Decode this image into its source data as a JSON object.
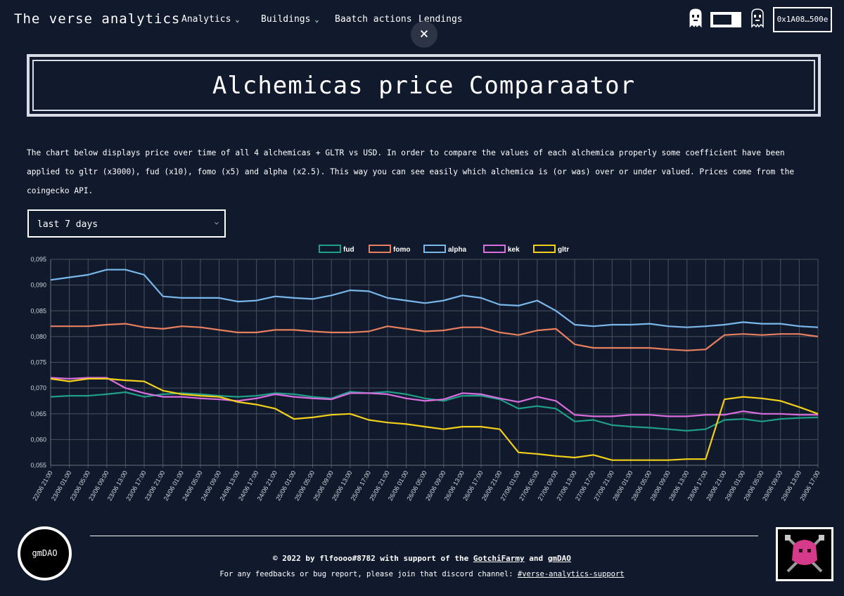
{
  "header": {
    "brand": "The verse analytics",
    "nav": [
      {
        "label": "Analytics",
        "dropdown": true
      },
      {
        "label": "Buildings",
        "dropdown": true
      },
      {
        "label": "Baatch actions",
        "dropdown": false
      },
      {
        "label": "Lendings",
        "dropdown": false
      }
    ],
    "close_label": "×",
    "wallet": "0x1A08…500e"
  },
  "page": {
    "title": "Alchemicas price Comparaator",
    "description": "The chart below displays price over time of all 4 alchemicas + GLTR vs USD. In order to compare the values of each alchemica properly some coefficient have been applied to gltr (x3000), fud (x10), fomo (x5) and alpha (x2.5). This way you can see easily which alchemica is (or was) over or under valued. Prices come from the coingecko API.",
    "range_select": "last 7 days"
  },
  "chart_data": {
    "type": "line",
    "title": "",
    "xlabel": "",
    "ylabel": "",
    "ylim": [
      0.055,
      0.095
    ],
    "yticks": [
      "0,055",
      "0,060",
      "0,065",
      "0,070",
      "0,075",
      "0,080",
      "0,085",
      "0,090",
      "0,095"
    ],
    "grid": true,
    "legend_position": "top",
    "x": [
      "22/06 21:00",
      "23/06 01:00",
      "23/06 05:00",
      "23/06 09:00",
      "23/06 13:00",
      "23/06 17:00",
      "23/06 21:00",
      "24/06 01:00",
      "24/06 05:00",
      "24/06 09:00",
      "24/06 13:00",
      "24/06 17:00",
      "24/06 21:00",
      "25/06 01:00",
      "25/06 05:00",
      "25/06 09:00",
      "25/06 13:00",
      "25/06 17:00",
      "25/06 21:00",
      "26/06 01:00",
      "26/06 05:00",
      "26/06 09:00",
      "26/06 13:00",
      "26/06 17:00",
      "26/06 21:00",
      "27/06 01:00",
      "27/06 05:00",
      "27/06 09:00",
      "27/06 13:00",
      "27/06 17:00",
      "27/06 21:00",
      "28/06 01:00",
      "28/06 05:00",
      "28/06 09:00",
      "28/06 13:00",
      "28/06 17:00",
      "28/06 21:00",
      "29/06 01:00",
      "29/06 05:00",
      "29/06 09:00",
      "29/06 13:00",
      "29/06 17:00"
    ],
    "series": [
      {
        "name": "fud",
        "color": "#1f9e89",
        "values": [
          0.0683,
          0.0685,
          0.0685,
          0.0688,
          0.0692,
          0.0683,
          0.0688,
          0.069,
          0.0688,
          0.0685,
          0.0683,
          0.0685,
          0.069,
          0.0688,
          0.0683,
          0.068,
          0.0693,
          0.069,
          0.0693,
          0.0688,
          0.068,
          0.0675,
          0.0685,
          0.0685,
          0.0678,
          0.066,
          0.0665,
          0.066,
          0.0635,
          0.0638,
          0.0628,
          0.0625,
          0.0623,
          0.062,
          0.0617,
          0.062,
          0.0638,
          0.064,
          0.0635,
          0.064,
          0.0642,
          0.0643
        ]
      },
      {
        "name": "fomo",
        "color": "#e8805f",
        "values": [
          0.082,
          0.082,
          0.082,
          0.0823,
          0.0825,
          0.0818,
          0.0815,
          0.082,
          0.0818,
          0.0813,
          0.0808,
          0.0808,
          0.0813,
          0.0813,
          0.081,
          0.0808,
          0.0808,
          0.081,
          0.082,
          0.0815,
          0.081,
          0.0812,
          0.0818,
          0.0818,
          0.0808,
          0.0803,
          0.0812,
          0.0815,
          0.0785,
          0.0778,
          0.0778,
          0.0778,
          0.0778,
          0.0775,
          0.0773,
          0.0775,
          0.0803,
          0.0805,
          0.0803,
          0.0805,
          0.0805,
          0.08
        ]
      },
      {
        "name": "alpha",
        "color": "#7ab8ec",
        "values": [
          0.091,
          0.0915,
          0.092,
          0.093,
          0.093,
          0.092,
          0.0878,
          0.0875,
          0.0875,
          0.0875,
          0.0868,
          0.087,
          0.0878,
          0.0875,
          0.0873,
          0.088,
          0.089,
          0.0888,
          0.0875,
          0.087,
          0.0865,
          0.087,
          0.088,
          0.0875,
          0.0862,
          0.086,
          0.087,
          0.085,
          0.0823,
          0.082,
          0.0823,
          0.0823,
          0.0825,
          0.082,
          0.0818,
          0.082,
          0.0823,
          0.0828,
          0.0825,
          0.0825,
          0.082,
          0.0818
        ]
      },
      {
        "name": "kek",
        "color": "#d96ee0",
        "values": [
          0.072,
          0.0718,
          0.072,
          0.072,
          0.07,
          0.069,
          0.0683,
          0.0683,
          0.068,
          0.0678,
          0.0675,
          0.068,
          0.0688,
          0.0683,
          0.068,
          0.0678,
          0.069,
          0.069,
          0.0688,
          0.068,
          0.0675,
          0.0678,
          0.069,
          0.0688,
          0.068,
          0.0673,
          0.0683,
          0.0675,
          0.0648,
          0.0645,
          0.0645,
          0.0648,
          0.0648,
          0.0645,
          0.0645,
          0.0648,
          0.0648,
          0.0655,
          0.065,
          0.065,
          0.0648,
          0.0648
        ]
      },
      {
        "name": "gltr",
        "color": "#f2cf1a",
        "values": [
          0.0718,
          0.0713,
          0.0718,
          0.0718,
          0.0715,
          0.0713,
          0.0695,
          0.0688,
          0.0685,
          0.0683,
          0.0673,
          0.0668,
          0.066,
          0.064,
          0.0643,
          0.0648,
          0.065,
          0.0638,
          0.0633,
          0.063,
          0.0625,
          0.062,
          0.0625,
          0.0625,
          0.062,
          0.0575,
          0.0572,
          0.0568,
          0.0565,
          0.057,
          0.056,
          0.056,
          0.056,
          0.056,
          0.0562,
          0.0562,
          0.0678,
          0.0683,
          0.068,
          0.0675,
          0.0663,
          0.065
        ]
      }
    ]
  },
  "footer": {
    "gmdao_label": "gmDAO",
    "credit_prefix": "© 2022 by flfoooo#8782 with support of the ",
    "credit_link1": "GotchiFarmy",
    "credit_and": " and ",
    "credit_link2": "gmDAO",
    "support_prefix": "For any feedbacks or bug report, please join that discord channel: ",
    "support_link": "#verse-analytics-support"
  },
  "icons": {
    "ghost_left": "gotchi-ghost-icon",
    "ghost_right": "gotchi-ghost-dark-icon",
    "avatar": "gotchi-avatar-icon"
  }
}
